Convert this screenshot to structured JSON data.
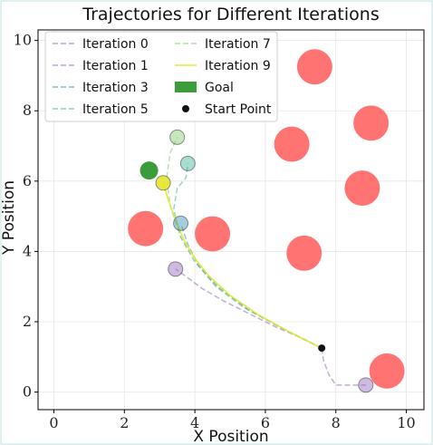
{
  "chart_data": {
    "type": "line",
    "title": "Trajectories for Different Iterations",
    "xlabel": "X Position",
    "ylabel": "Y Position",
    "xlim": [
      -0.45,
      10.5
    ],
    "ylim": [
      -0.5,
      10.3
    ],
    "xticks": [
      0,
      2,
      4,
      6,
      8,
      10
    ],
    "yticks": [
      0,
      2,
      4,
      6,
      8,
      10
    ],
    "grid": true,
    "legend_position": "top-left",
    "series": [
      {
        "name": "Iteration 0",
        "color": "#9467bd",
        "style": "dashed",
        "x": [
          7.6,
          7.65,
          7.8,
          8.0,
          8.3,
          8.85
        ],
        "y": [
          1.25,
          0.9,
          0.5,
          0.2,
          0.2,
          0.2
        ],
        "end_marker": true
      },
      {
        "name": "Iteration 1",
        "color": "#9467bd",
        "style": "dashed",
        "x": [
          7.6,
          7.0,
          6.3,
          5.5,
          4.8,
          4.2,
          3.8,
          3.45
        ],
        "y": [
          1.25,
          1.55,
          1.85,
          2.25,
          2.6,
          2.95,
          3.25,
          3.5
        ],
        "end_marker": true
      },
      {
        "name": "Iteration 3",
        "color": "#3b8fb0",
        "style": "dashed",
        "x": [
          7.6,
          6.5,
          5.4,
          4.6,
          4.1,
          3.8,
          3.6
        ],
        "y": [
          1.25,
          1.8,
          2.4,
          3.0,
          3.6,
          4.2,
          4.8
        ],
        "end_marker": true
      },
      {
        "name": "Iteration 5",
        "color": "#3fb39a",
        "style": "dashed",
        "x": [
          7.6,
          6.6,
          5.5,
          4.6,
          4.0,
          3.6,
          3.4,
          3.5,
          3.75,
          3.8
        ],
        "y": [
          1.25,
          1.75,
          2.35,
          3.05,
          3.7,
          4.4,
          5.2,
          5.8,
          6.1,
          6.5
        ],
        "end_marker": true
      },
      {
        "name": "Iteration 7",
        "color": "#7fcf6a",
        "style": "dashed",
        "x": [
          7.6,
          6.6,
          5.6,
          4.7,
          4.1,
          3.6,
          3.3,
          3.2,
          3.3,
          3.5
        ],
        "y": [
          1.25,
          1.75,
          2.3,
          2.95,
          3.65,
          4.4,
          5.3,
          6.1,
          6.8,
          7.25
        ],
        "end_marker": true
      },
      {
        "name": "Iteration 9",
        "color": "#e6e62e",
        "style": "solid",
        "x": [
          7.6,
          6.7,
          5.8,
          5.0,
          4.4,
          4.0,
          3.7,
          3.45,
          3.25,
          3.1
        ],
        "y": [
          1.25,
          1.7,
          2.2,
          2.75,
          3.3,
          3.8,
          4.3,
          4.9,
          5.45,
          5.95
        ],
        "end_marker": true
      }
    ],
    "goal": {
      "name": "Goal",
      "x": 2.7,
      "y": 6.3,
      "color": "#3a9d3a"
    },
    "start": {
      "name": "Start Point",
      "x": 7.6,
      "y": 1.25,
      "color": "#111111"
    },
    "obstacles": {
      "color": "#ff6b6b",
      "points": [
        {
          "x": 7.4,
          "y": 9.25,
          "r": 0.5
        },
        {
          "x": 9.0,
          "y": 7.65,
          "r": 0.5
        },
        {
          "x": 6.75,
          "y": 7.05,
          "r": 0.5
        },
        {
          "x": 8.75,
          "y": 5.8,
          "r": 0.5
        },
        {
          "x": 2.6,
          "y": 4.65,
          "r": 0.5
        },
        {
          "x": 4.5,
          "y": 4.5,
          "r": 0.5
        },
        {
          "x": 7.1,
          "y": 3.95,
          "r": 0.5
        },
        {
          "x": 9.45,
          "y": 0.6,
          "r": 0.5
        }
      ]
    }
  }
}
